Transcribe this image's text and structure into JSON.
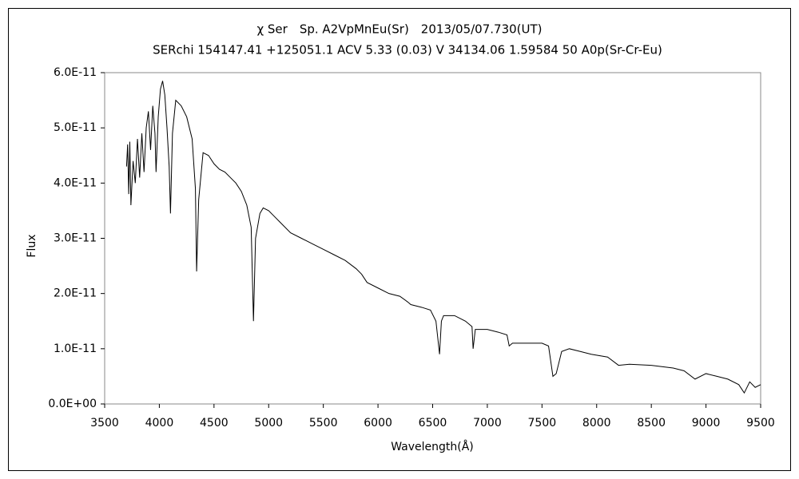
{
  "chart_data": {
    "type": "line",
    "title": "χ Ser　Sp. A2VpMnEu(Sr)　2013/05/07.730(UT)",
    "subtitle": "SERchi 154147.41 +125051.1 ACV 5.33 (0.03) V 34134.06 1.59584 50 A0p(Sr-Cr-Eu)",
    "x_label": "Wavelength(Å)",
    "y_label": "Flux",
    "xlim": [
      3500,
      9500
    ],
    "xticks": [
      3500,
      4000,
      4500,
      5000,
      5500,
      6000,
      6500,
      7000,
      7500,
      8000,
      8500,
      9000,
      9500
    ],
    "ylim": [
      0,
      6e-11
    ],
    "yticks": [
      {
        "value": 0,
        "label": "0.0E+00"
      },
      {
        "value": 1e-11,
        "label": "1.0E-11"
      },
      {
        "value": 2e-11,
        "label": "2.0E-11"
      },
      {
        "value": 3e-11,
        "label": "3.0E-11"
      },
      {
        "value": 4e-11,
        "label": "4.0E-11"
      },
      {
        "value": 5e-11,
        "label": "5.0E-11"
      },
      {
        "value": 6e-11,
        "label": "6.0E-11"
      }
    ],
    "grid": false,
    "color": "#000000",
    "x": [
      3700,
      3710,
      3720,
      3730,
      3740,
      3760,
      3780,
      3800,
      3820,
      3840,
      3860,
      3880,
      3900,
      3920,
      3940,
      3960,
      3970,
      3990,
      4010,
      4030,
      4050,
      4070,
      4090,
      4102,
      4120,
      4150,
      4200,
      4250,
      4300,
      4330,
      4341,
      4360,
      4400,
      4450,
      4500,
      4550,
      4600,
      4650,
      4700,
      4750,
      4800,
      4840,
      4861,
      4880,
      4920,
      4950,
      5000,
      5050,
      5100,
      5200,
      5300,
      5400,
      5500,
      5600,
      5700,
      5800,
      5850,
      5900,
      6000,
      6100,
      6200,
      6270,
      6300,
      6400,
      6480,
      6530,
      6563,
      6580,
      6600,
      6700,
      6800,
      6860,
      6870,
      6890,
      7000,
      7100,
      7180,
      7200,
      7230,
      7300,
      7400,
      7500,
      7560,
      7600,
      7630,
      7680,
      7750,
      7850,
      7950,
      8100,
      8200,
      8300,
      8500,
      8700,
      8800,
      8900,
      9000,
      9100,
      9200,
      9300,
      9350,
      9400,
      9450,
      9500
    ],
    "values": [
      4.3e-11,
      4.7e-11,
      3.8e-11,
      4.75e-11,
      3.6e-11,
      4.4e-11,
      4e-11,
      4.8e-11,
      4.1e-11,
      4.9e-11,
      4.2e-11,
      5e-11,
      5.3e-11,
      4.6e-11,
      5.4e-11,
      4.9e-11,
      4.2e-11,
      5.2e-11,
      5.7e-11,
      5.85e-11,
      5.6e-11,
      5e-11,
      4.3e-11,
      3.45e-11,
      4.9e-11,
      5.5e-11,
      5.4e-11,
      5.2e-11,
      4.8e-11,
      3.9e-11,
      2.4e-11,
      3.7e-11,
      4.55e-11,
      4.5e-11,
      4.35e-11,
      4.25e-11,
      4.2e-11,
      4.1e-11,
      4e-11,
      3.85e-11,
      3.6e-11,
      3.2e-11,
      1.5e-11,
      3e-11,
      3.45e-11,
      3.55e-11,
      3.5e-11,
      3.4e-11,
      3.3e-11,
      3.1e-11,
      3e-11,
      2.9e-11,
      2.8e-11,
      2.7e-11,
      2.6e-11,
      2.45e-11,
      2.35e-11,
      2.2e-11,
      2.1e-11,
      2e-11,
      1.95e-11,
      1.85e-11,
      1.8e-11,
      1.75e-11,
      1.7e-11,
      1.5e-11,
      9e-12,
      1.5e-11,
      1.6e-11,
      1.6e-11,
      1.5e-11,
      1.4e-11,
      1e-11,
      1.35e-11,
      1.35e-11,
      1.3e-11,
      1.25e-11,
      1.05e-11,
      1.1e-11,
      1.1e-11,
      1.1e-11,
      1.1e-11,
      1.05e-11,
      5e-12,
      5.5e-12,
      9.5e-12,
      1e-11,
      9.5e-12,
      9e-12,
      8.5e-12,
      7e-12,
      7.2e-12,
      7e-12,
      6.5e-12,
      6e-12,
      4.5e-12,
      5.5e-12,
      5e-12,
      4.5e-12,
      3.5e-12,
      2e-12,
      4e-12,
      3e-12,
      3.5e-12
    ]
  }
}
